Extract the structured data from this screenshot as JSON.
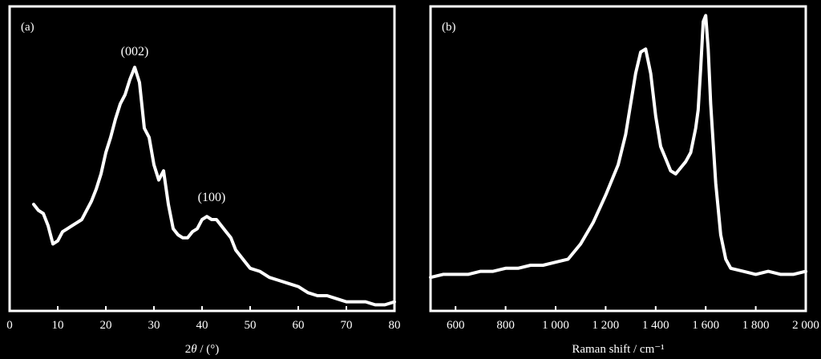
{
  "chart_data": [
    {
      "type": "line",
      "panel_label": "(a)",
      "xlabel_prefix": "2",
      "xlabel_symbol": "θ",
      "xlabel_suffix": " / (°)",
      "ylabel": "",
      "xlim": [
        0,
        80
      ],
      "ylim": [
        0,
        1
      ],
      "y_axis_ticks": false,
      "grid": false,
      "x_ticks": [
        0,
        10,
        20,
        30,
        40,
        50,
        60,
        70,
        80
      ],
      "x_tick_labels": [
        "0",
        "10",
        "20",
        "30",
        "40",
        "50",
        "60",
        "70",
        "80"
      ],
      "annotations": [
        {
          "text": "(002)",
          "x": 26,
          "y": 0.84
        },
        {
          "text": "(100)",
          "x": 42,
          "y": 0.36
        }
      ],
      "series": [
        {
          "color": "#ffffff",
          "x": [
            5,
            6,
            7,
            8,
            9,
            10,
            11,
            12,
            13,
            14,
            15,
            16,
            17,
            18,
            19,
            20,
            21,
            22,
            23,
            24,
            25,
            26,
            27,
            28,
            29,
            30,
            31,
            32,
            33,
            34,
            35,
            36,
            37,
            38,
            39,
            40,
            41,
            42,
            43,
            44,
            45,
            46,
            47,
            48,
            49,
            50,
            52,
            54,
            56,
            58,
            60,
            62,
            64,
            66,
            68,
            70,
            72,
            74,
            76,
            78,
            80
          ],
          "y": [
            0.35,
            0.33,
            0.32,
            0.28,
            0.22,
            0.23,
            0.26,
            0.27,
            0.28,
            0.29,
            0.3,
            0.33,
            0.36,
            0.4,
            0.45,
            0.52,
            0.57,
            0.63,
            0.68,
            0.71,
            0.76,
            0.8,
            0.75,
            0.6,
            0.57,
            0.48,
            0.43,
            0.46,
            0.35,
            0.27,
            0.25,
            0.24,
            0.24,
            0.26,
            0.27,
            0.3,
            0.31,
            0.3,
            0.3,
            0.28,
            0.26,
            0.24,
            0.2,
            0.18,
            0.16,
            0.14,
            0.13,
            0.11,
            0.1,
            0.09,
            0.08,
            0.06,
            0.05,
            0.05,
            0.04,
            0.03,
            0.03,
            0.03,
            0.02,
            0.02,
            0.03
          ]
        }
      ]
    },
    {
      "type": "line",
      "panel_label": "(b)",
      "xlabel": "Raman shift / cm⁻¹",
      "ylabel": "",
      "xlim": [
        500,
        2000
      ],
      "ylim": [
        0,
        1
      ],
      "y_axis_ticks": false,
      "grid": false,
      "x_ticks": [
        600,
        800,
        1000,
        1200,
        1400,
        1600,
        1800,
        2000
      ],
      "x_tick_labels": [
        "600",
        "800",
        "1 000",
        "1 200",
        "1 400",
        "1 600",
        "1 800",
        "2 000"
      ],
      "series": [
        {
          "color": "#ffffff",
          "x": [
            500,
            550,
            600,
            650,
            700,
            750,
            800,
            850,
            900,
            950,
            1000,
            1050,
            1100,
            1150,
            1200,
            1250,
            1280,
            1300,
            1320,
            1340,
            1360,
            1380,
            1400,
            1420,
            1440,
            1460,
            1480,
            1500,
            1520,
            1540,
            1560,
            1570,
            1580,
            1590,
            1600,
            1610,
            1620,
            1640,
            1660,
            1680,
            1700,
            1750,
            1800,
            1850,
            1900,
            1950,
            2000
          ],
          "y": [
            0.11,
            0.12,
            0.12,
            0.12,
            0.13,
            0.13,
            0.14,
            0.14,
            0.15,
            0.15,
            0.16,
            0.17,
            0.22,
            0.29,
            0.38,
            0.48,
            0.58,
            0.68,
            0.78,
            0.85,
            0.86,
            0.78,
            0.64,
            0.54,
            0.5,
            0.46,
            0.45,
            0.47,
            0.49,
            0.52,
            0.6,
            0.66,
            0.8,
            0.95,
            0.97,
            0.86,
            0.68,
            0.42,
            0.25,
            0.17,
            0.14,
            0.13,
            0.12,
            0.13,
            0.12,
            0.12,
            0.13
          ]
        }
      ]
    }
  ]
}
